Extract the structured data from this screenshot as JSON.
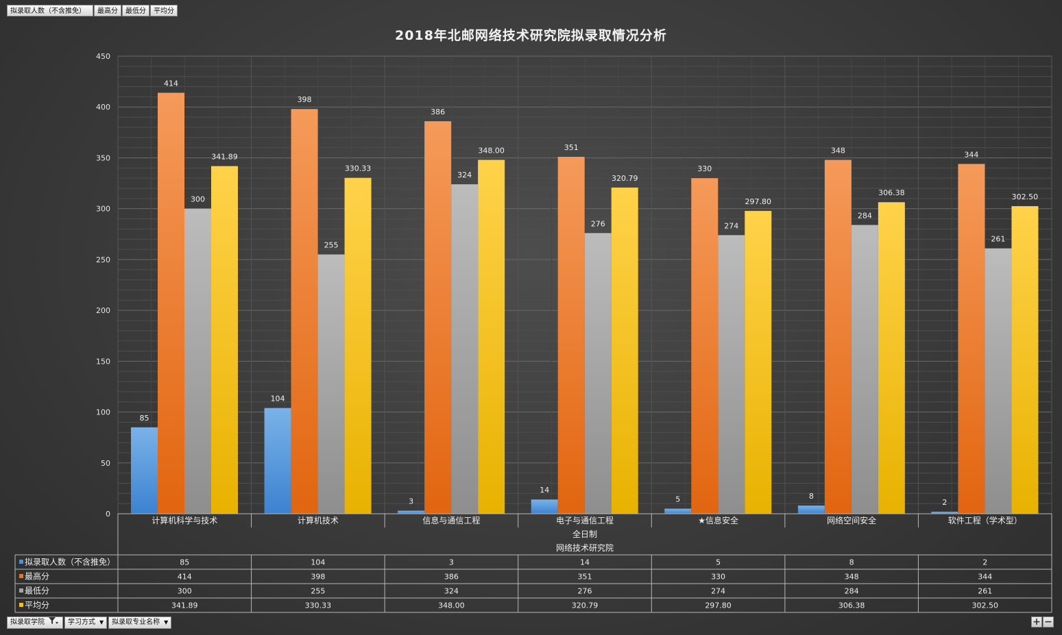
{
  "top_buttons": [
    {
      "label": "拟录取人数（不含推免）"
    },
    {
      "label": "最高分"
    },
    {
      "label": "最低分"
    },
    {
      "label": "平均分"
    }
  ],
  "bottom_buttons": [
    {
      "label": "拟录取学院",
      "icon": "filter-icon"
    },
    {
      "label": "学习方式",
      "icon": "dropdown-icon"
    },
    {
      "label": "拟录取专业名称",
      "icon": "dropdown-icon"
    }
  ],
  "zoom": {
    "plus": "+",
    "minus": "−"
  },
  "chart_data": {
    "type": "bar",
    "title": "2018年北邮网络技术研究院拟录取情况分析",
    "categories": [
      "计算机科学与技术",
      "计算机技术",
      "信息与通信工程",
      "电子与通信工程",
      "★信息安全",
      "网络空间安全",
      "软件工程（学术型）"
    ],
    "category_group_2": "全日制",
    "category_group_1": "网络技术研究院",
    "ylim": [
      0,
      450
    ],
    "yticks": [
      0,
      50,
      100,
      150,
      200,
      250,
      300,
      350,
      400,
      450
    ],
    "grid": true,
    "legend": "data-table",
    "series": [
      {
        "name": "拟录取人数（不含推免）",
        "color": "#4a90d9",
        "values": [
          85,
          104,
          3,
          14,
          5,
          8,
          2
        ],
        "labels": [
          "85",
          "104",
          "3",
          "14",
          "5",
          "8",
          "2"
        ]
      },
      {
        "name": "最高分",
        "color": "#ee7424",
        "values": [
          414,
          398,
          386,
          351,
          330,
          348,
          344
        ],
        "labels": [
          "414",
          "398",
          "386",
          "351",
          "330",
          "348",
          "344"
        ]
      },
      {
        "name": "最低分",
        "color": "#a5a5a5",
        "values": [
          300,
          255,
          324,
          276,
          274,
          284,
          261
        ],
        "labels": [
          "300",
          "255",
          "324",
          "276",
          "274",
          "284",
          "261"
        ]
      },
      {
        "name": "平均分",
        "color": "#ffc000",
        "values": [
          341.89,
          330.33,
          348.0,
          320.79,
          297.8,
          306.38,
          302.5
        ],
        "labels": [
          "341.89",
          "330.33",
          "348.00",
          "320.79",
          "297.80",
          "306.38",
          "302.50"
        ]
      }
    ]
  }
}
